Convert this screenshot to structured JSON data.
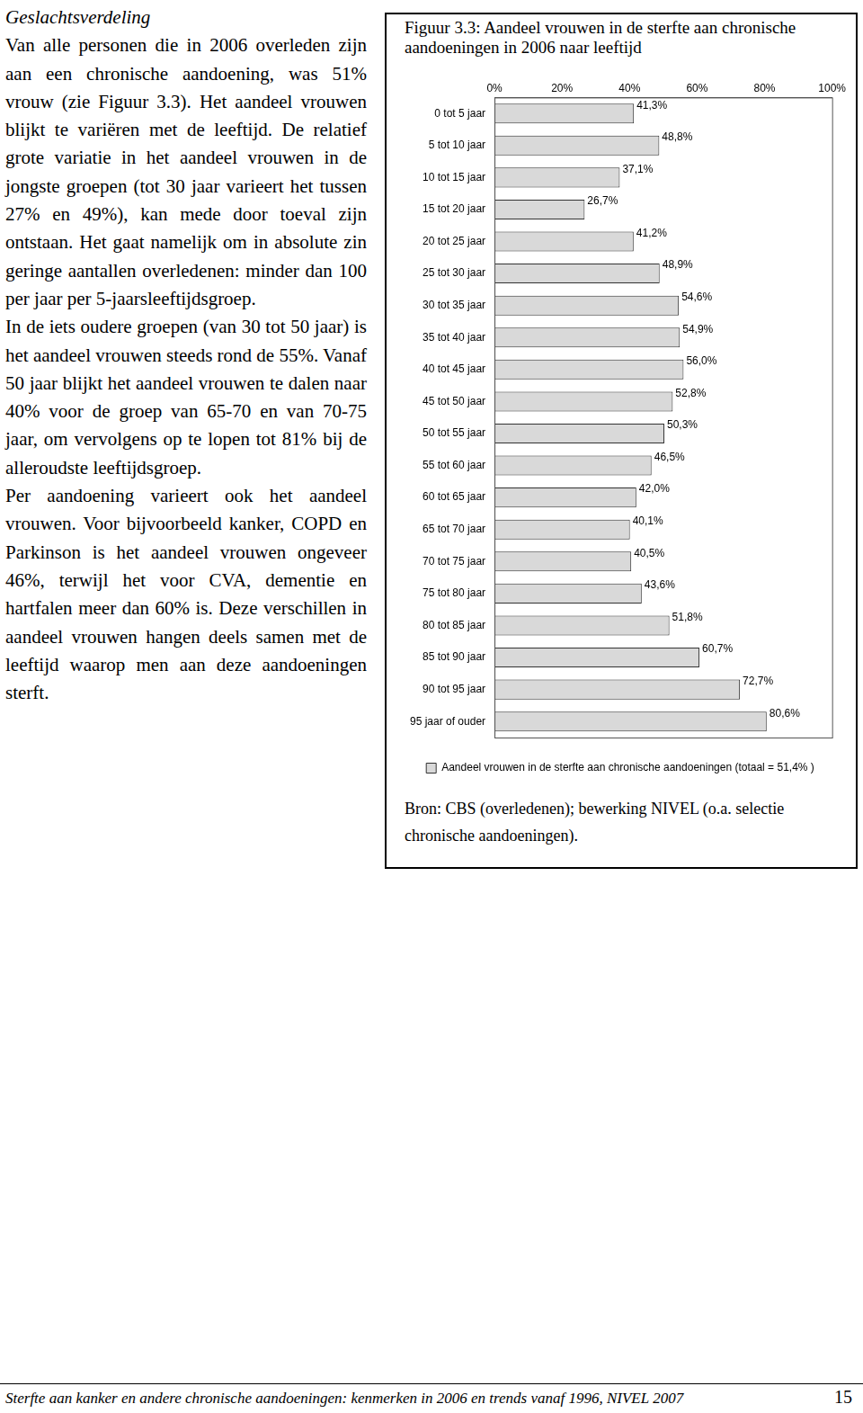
{
  "text": {
    "heading": "Geslachtsverdeling",
    "paragraphs": [
      "Van alle personen die in 2006 overleden zijn aan een chronische aandoening, was 51% vrouw (zie Figuur 3.3). Het aandeel vrouwen blijkt te variëren met de leeftijd. De relatief grote variatie in het aandeel vrouwen in de jongste groepen (tot 30 jaar varieert het tussen 27% en 49%), kan mede door toeval zijn ontstaan. Het gaat namelijk om in absolute zin geringe aantallen overledenen: minder dan 100 per jaar per 5-jaarsleeftijdsgroep.",
      "In de iets oudere groepen (van 30 tot 50 jaar) is het aandeel vrouwen steeds rond de 55%. Vanaf 50 jaar blijkt het aandeel vrouwen te dalen naar 40% voor de groep van 65-70 en van 70-75 jaar, om vervolgens op te lopen tot 81% bij de alleroudste leeftijdsgroep.",
      "Per aandoening varieert ook het aandeel vrouwen. Voor bijvoorbeeld kanker, COPD en Parkinson is het aandeel vrouwen ongeveer 46%, terwijl het voor CVA, dementie en hartfalen meer dan 60% is. Deze verschillen in aandeel vrouwen hangen deels samen met de leeftijd waarop men aan deze aandoeningen sterft."
    ]
  },
  "figure": {
    "title": "Figuur 3.3: Aandeel vrouwen in de sterfte aan chronische aandoeningen in 2006 naar leeftijd",
    "source": "Bron: CBS (overledenen); bewerking NIVEL (o.a. selectie chronische aandoeningen)."
  },
  "chart_data": {
    "type": "bar",
    "orientation": "horizontal",
    "categories": [
      "0 tot 5 jaar",
      "5 tot 10 jaar",
      "10 tot 15 jaar",
      "15 tot 20 jaar",
      "20 tot 25 jaar",
      "25 tot 30 jaar",
      "30 tot 35 jaar",
      "35 tot 40 jaar",
      "40 tot 45 jaar",
      "45 tot 50 jaar",
      "50 tot 55 jaar",
      "55 tot 60 jaar",
      "60 tot 65 jaar",
      "65 tot 70 jaar",
      "70 tot 75 jaar",
      "75 tot 80 jaar",
      "80 tot 85 jaar",
      "85 tot 90 jaar",
      "90 tot 95 jaar",
      "95 jaar of ouder"
    ],
    "series": [
      {
        "name": "Aandeel vrouwen in de sterfte aan chronische aandoeningen (totaal = 51,4% )",
        "color": "#d9d9d9",
        "values": [
          41.3,
          48.8,
          37.1,
          26.7,
          41.2,
          48.9,
          54.6,
          54.9,
          56.0,
          52.8,
          50.3,
          46.5,
          42.0,
          40.1,
          40.5,
          43.6,
          51.8,
          60.7,
          72.7,
          80.6
        ],
        "value_labels": [
          "41,3%",
          "48,8%",
          "37,1%",
          "26,7%",
          "41,2%",
          "48,9%",
          "54,6%",
          "54,9%",
          "56,0%",
          "52,8%",
          "50,3%",
          "46,5%",
          "42,0%",
          "40,1%",
          "40,5%",
          "43,6%",
          "51,8%",
          "60,7%",
          "72,7%",
          "80,6%"
        ]
      }
    ],
    "xlim": [
      0,
      100
    ],
    "xticks": [
      {
        "value": 0,
        "label": "0%"
      },
      {
        "value": 20,
        "label": "20%"
      },
      {
        "value": 40,
        "label": "40%"
      },
      {
        "value": 60,
        "label": "60%"
      },
      {
        "value": 80,
        "label": "80%"
      },
      {
        "value": 100,
        "label": "100%"
      }
    ],
    "grid": false,
    "legend": "bottom",
    "data_labels": true
  },
  "footer": {
    "text": "Sterfte aan kanker en andere chronische aandoeningen: kenmerken in 2006 en trends vanaf 1996, NIVEL 2007",
    "page": "15"
  }
}
